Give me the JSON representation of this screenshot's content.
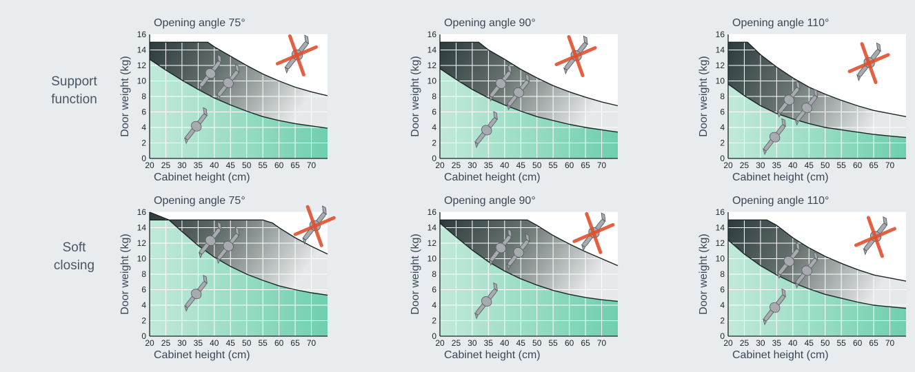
{
  "row_labels": [
    {
      "line1": "Support",
      "line2": "function"
    },
    {
      "line1": "Soft",
      "line2": "closing"
    }
  ],
  "colors": {
    "background": "#e9ecef",
    "green_zone": "#6fcfae",
    "dark_zone": "#2c3a3d",
    "grid": "#ffffff",
    "cross": "#e0502e",
    "hinge": "#a7abb0"
  },
  "icons": [
    "hinge-icon",
    "crossed-hinge-icon"
  ],
  "chart_data": [
    {
      "type": "area",
      "row": "Support function",
      "title": "Opening angle 75°",
      "xlabel": "Cabinet height (cm)",
      "ylabel": "Door weight (kg)",
      "xticks": [
        20,
        25,
        30,
        35,
        40,
        45,
        50,
        55,
        60,
        65,
        70
      ],
      "yticks": [
        0,
        2,
        4,
        6,
        8,
        10,
        12,
        14,
        16
      ],
      "xlim": [
        20,
        75
      ],
      "ylim": [
        0,
        16
      ],
      "grid": true,
      "lower_boundary": {
        "x": [
          20,
          25,
          30,
          35,
          40,
          45,
          50,
          55,
          60,
          65,
          70,
          75
        ],
        "y": [
          12.8,
          11.4,
          10.1,
          8.9,
          7.8,
          6.9,
          6.1,
          5.4,
          4.9,
          4.5,
          4.2,
          3.9
        ]
      },
      "upper_boundary": {
        "x": [
          20,
          25,
          30,
          35,
          38,
          40,
          45,
          50,
          55,
          60,
          65,
          70,
          75
        ],
        "y": [
          15,
          15,
          15,
          15,
          15,
          14.4,
          13.2,
          12.0,
          10.9,
          10.0,
          9.2,
          8.6,
          8.1
        ]
      },
      "crossed_out_icon": {
        "x": 65.5,
        "y": 13.3
      }
    },
    {
      "type": "area",
      "row": "Support function",
      "title": "Opening angle 90°",
      "xlabel": "Cabinet height (cm)",
      "ylabel": "Door weight (kg)",
      "xticks": [
        20,
        25,
        30,
        35,
        40,
        45,
        50,
        55,
        60,
        65,
        70
      ],
      "yticks": [
        0,
        2,
        4,
        6,
        8,
        10,
        12,
        14,
        16
      ],
      "xlim": [
        20,
        75
      ],
      "ylim": [
        0,
        16
      ],
      "grid": true,
      "lower_boundary": {
        "x": [
          20,
          25,
          30,
          35,
          40,
          45,
          50,
          55,
          60,
          65,
          70,
          75
        ],
        "y": [
          11.6,
          10.2,
          8.9,
          7.8,
          6.9,
          6.1,
          5.4,
          4.9,
          4.4,
          4.0,
          3.7,
          3.4
        ]
      },
      "upper_boundary": {
        "x": [
          20,
          25,
          30,
          32,
          35,
          40,
          45,
          50,
          55,
          60,
          65,
          70,
          75
        ],
        "y": [
          15,
          15,
          15,
          15,
          14.0,
          12.8,
          11.5,
          10.4,
          9.4,
          8.6,
          7.9,
          7.3,
          6.8
        ]
      },
      "crossed_out_icon": {
        "x": 62,
        "y": 13.2
      }
    },
    {
      "type": "area",
      "row": "Support function",
      "title": "Opening angle 110°",
      "xlabel": "Cabinet height (cm)",
      "ylabel": "Door weight (kg)",
      "xticks": [
        20,
        25,
        30,
        35,
        40,
        45,
        50,
        55,
        60,
        65,
        70
      ],
      "yticks": [
        0,
        2,
        4,
        6,
        8,
        10,
        12,
        14,
        16
      ],
      "xlim": [
        20,
        75
      ],
      "ylim": [
        0,
        16
      ],
      "grid": true,
      "lower_boundary": {
        "x": [
          20,
          25,
          30,
          35,
          40,
          45,
          50,
          55,
          60,
          65,
          70,
          75
        ],
        "y": [
          9.6,
          8.1,
          6.8,
          5.8,
          5.1,
          4.5,
          4.0,
          3.7,
          3.4,
          3.1,
          2.9,
          2.7
        ]
      },
      "upper_boundary": {
        "x": [
          20,
          25,
          26,
          30,
          35,
          40,
          45,
          50,
          55,
          60,
          65,
          70,
          75
        ],
        "y": [
          15,
          15,
          15,
          13.4,
          11.8,
          10.4,
          9.2,
          8.3,
          7.5,
          6.8,
          6.2,
          5.8,
          5.4
        ]
      },
      "crossed_out_icon": {
        "x": 63.5,
        "y": 12.3
      }
    },
    {
      "type": "area",
      "row": "Soft closing",
      "title": "Opening angle 75°",
      "xlabel": "Cabinet height (cm)",
      "ylabel": "Door weight (kg)",
      "xticks": [
        20,
        25,
        30,
        35,
        40,
        45,
        50,
        55,
        60,
        65,
        70
      ],
      "yticks": [
        0,
        2,
        4,
        6,
        8,
        10,
        12,
        14,
        16
      ],
      "xlim": [
        20,
        75
      ],
      "ylim": [
        0,
        16
      ],
      "grid": true,
      "lower_boundary": {
        "x": [
          20,
          26,
          30,
          35,
          40,
          45,
          50,
          55,
          60,
          65,
          70,
          75
        ],
        "y": [
          15,
          15,
          13.5,
          11.7,
          10.2,
          9.0,
          8.0,
          7.2,
          6.5,
          6.0,
          5.6,
          5.3
        ]
      },
      "upper_boundary": {
        "x": [
          20,
          26,
          30,
          35,
          40,
          45,
          50,
          55,
          58,
          60,
          65,
          70,
          75
        ],
        "y": [
          16,
          15,
          15,
          15,
          15,
          15,
          15,
          15,
          14.6,
          14.0,
          12.7,
          11.6,
          10.6
        ]
      },
      "crossed_out_icon": {
        "x": 71,
        "y": 14.2
      }
    },
    {
      "type": "area",
      "row": "Soft closing",
      "title": "Opening angle 90°",
      "xlabel": "Cabinet height (cm)",
      "ylabel": "Door weight (kg)",
      "xticks": [
        20,
        25,
        30,
        35,
        40,
        45,
        50,
        55,
        60,
        65,
        70
      ],
      "yticks": [
        0,
        2,
        4,
        6,
        8,
        10,
        12,
        14,
        16
      ],
      "xlim": [
        20,
        75
      ],
      "ylim": [
        0,
        16
      ],
      "grid": true,
      "lower_boundary": {
        "x": [
          20,
          25,
          30,
          35,
          40,
          45,
          50,
          55,
          60,
          65,
          70,
          75
        ],
        "y": [
          14.6,
          12.8,
          11.1,
          9.6,
          8.4,
          7.4,
          6.6,
          5.9,
          5.4,
          5.0,
          4.7,
          4.5
        ]
      },
      "upper_boundary": {
        "x": [
          20,
          25,
          30,
          35,
          40,
          45,
          47,
          50,
          55,
          60,
          65,
          70,
          75
        ],
        "y": [
          15,
          15,
          15,
          15,
          15,
          15,
          15,
          14.3,
          13.0,
          11.9,
          10.9,
          10.0,
          9.1
        ]
      },
      "crossed_out_icon": {
        "x": 67.5,
        "y": 13.3
      }
    },
    {
      "type": "area",
      "row": "Soft closing",
      "title": "Opening angle 110°",
      "xlabel": "Cabinet height (cm)",
      "ylabel": "Door weight (kg)",
      "xticks": [
        20,
        25,
        30,
        35,
        40,
        45,
        50,
        55,
        60,
        65,
        70
      ],
      "yticks": [
        0,
        2,
        4,
        6,
        8,
        10,
        12,
        14,
        16
      ],
      "xlim": [
        20,
        75
      ],
      "ylim": [
        0,
        16
      ],
      "grid": true,
      "lower_boundary": {
        "x": [
          20,
          25,
          30,
          35,
          40,
          45,
          50,
          55,
          60,
          65,
          70,
          75
        ],
        "y": [
          12.4,
          10.6,
          9.1,
          7.9,
          6.9,
          6.1,
          5.4,
          4.9,
          4.4,
          4.0,
          3.8,
          3.6
        ]
      },
      "upper_boundary": {
        "x": [
          20,
          25,
          30,
          32,
          35,
          40,
          45,
          50,
          55,
          60,
          65,
          70,
          75
        ],
        "y": [
          15,
          15,
          15,
          15,
          14.3,
          12.7,
          11.4,
          10.3,
          9.4,
          8.6,
          7.9,
          7.5,
          7.1
        ]
      },
      "crossed_out_icon": {
        "x": 65.5,
        "y": 12.8
      }
    }
  ]
}
